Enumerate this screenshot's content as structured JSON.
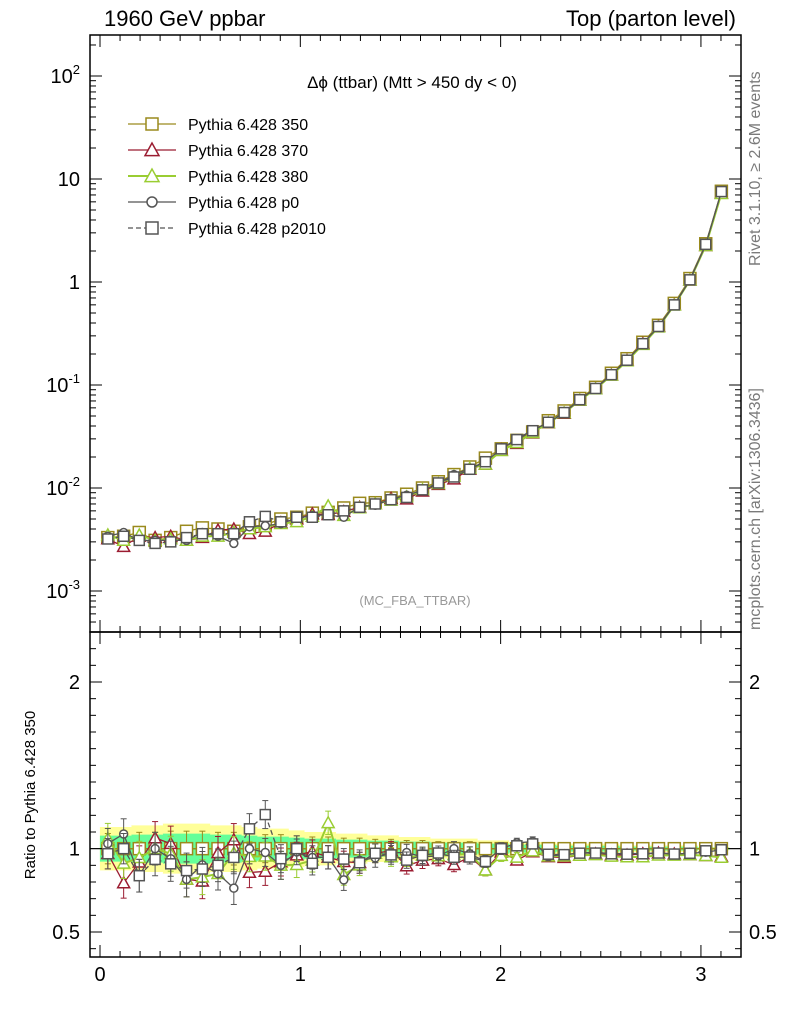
{
  "header": {
    "left": "1960 GeV ppbar",
    "right": "Top (parton level)"
  },
  "side_labels": {
    "rivet": "Rivet 3.1.10, ≥ 2.6M events",
    "mcplots": "mcplots.cern.ch [arXiv:1306.3436]"
  },
  "chart_data": {
    "type": "line",
    "title": "Δϕ (ttbar) (Mtt > 450 dy < 0)",
    "analysis_label": "(MC_FBA_TTBAR)",
    "xlabel": "",
    "ylabel": "",
    "xlim": [
      -0.05,
      3.2
    ],
    "ylim": [
      0.0004,
      250
    ],
    "yscale": "log",
    "x_ticks": [
      "0",
      "1",
      "2",
      "3"
    ],
    "y_ticks": [
      "10^-3",
      "10^-2",
      "10^-1",
      "1",
      "10",
      "10^2"
    ],
    "legend_position": "top-left",
    "x": [
      0.039,
      0.118,
      0.196,
      0.275,
      0.353,
      0.432,
      0.511,
      0.589,
      0.668,
      0.746,
      0.825,
      0.903,
      0.982,
      1.06,
      1.139,
      1.217,
      1.296,
      1.374,
      1.453,
      1.531,
      1.61,
      1.689,
      1.767,
      1.846,
      1.924,
      2.003,
      2.081,
      2.16,
      2.238,
      2.317,
      2.395,
      2.474,
      2.553,
      2.631,
      2.71,
      2.788,
      2.867,
      2.945,
      3.024,
      3.102
    ],
    "series": [
      {
        "name": "Pythia 6.428 350",
        "color": "#9a8a1d",
        "marker": "square",
        "dash": "solid",
        "values": [
          0.0033,
          0.0034,
          0.0037,
          0.0031,
          0.0033,
          0.0038,
          0.0041,
          0.004,
          0.0038,
          0.0042,
          0.0044,
          0.005,
          0.0052,
          0.0057,
          0.0058,
          0.0064,
          0.0071,
          0.0072,
          0.008,
          0.0087,
          0.01,
          0.0115,
          0.0135,
          0.016,
          0.0195,
          0.024,
          0.029,
          0.035,
          0.045,
          0.056,
          0.074,
          0.095,
          0.13,
          0.18,
          0.26,
          0.38,
          0.62,
          1.08,
          2.35,
          7.6
        ]
      },
      {
        "name": "Pythia 6.428 370",
        "color": "#9b1c31",
        "marker": "triangle",
        "dash": "solid",
        "values": [
          0.0032,
          0.0027,
          0.0034,
          0.0033,
          0.0034,
          0.0031,
          0.0033,
          0.0039,
          0.004,
          0.0036,
          0.0038,
          0.0046,
          0.005,
          0.0056,
          0.0055,
          0.0059,
          0.0065,
          0.007,
          0.0079,
          0.0078,
          0.0093,
          0.0108,
          0.0122,
          0.0152,
          0.017,
          0.0235,
          0.027,
          0.0343,
          0.0428,
          0.053,
          0.071,
          0.092,
          0.125,
          0.173,
          0.252,
          0.37,
          0.6,
          1.04,
          2.25,
          7.25
        ]
      },
      {
        "name": "Pythia 6.428 380",
        "color": "#9acd32",
        "marker": "triangle",
        "dash": "solid",
        "values": [
          0.0035,
          0.0031,
          0.0035,
          0.0031,
          0.0032,
          0.0031,
          0.0034,
          0.0034,
          0.0037,
          0.004,
          0.0042,
          0.0045,
          0.0047,
          0.0053,
          0.0067,
          0.0054,
          0.0064,
          0.007,
          0.0076,
          0.0082,
          0.0096,
          0.011,
          0.013,
          0.0155,
          0.017,
          0.023,
          0.0275,
          0.0345,
          0.043,
          0.0535,
          0.071,
          0.0915,
          0.124,
          0.171,
          0.247,
          0.365,
          0.595,
          1.04,
          2.25,
          7.2
        ]
      },
      {
        "name": "Pythia 6.428 p0",
        "color": "#555555",
        "marker": "circle",
        "dash": "solid",
        "values": [
          0.0034,
          0.0037,
          0.0031,
          0.0031,
          0.0031,
          0.0031,
          0.0037,
          0.0034,
          0.0029,
          0.0042,
          0.0043,
          0.0045,
          0.0051,
          0.0054,
          0.0055,
          0.0052,
          0.0066,
          0.0068,
          0.0078,
          0.0085,
          0.0095,
          0.011,
          0.0135,
          0.0155,
          0.018,
          0.024,
          0.03,
          0.0365,
          0.043,
          0.054,
          0.072,
          0.093,
          0.126,
          0.175,
          0.252,
          0.37,
          0.6,
          1.05,
          2.3,
          7.55
        ]
      },
      {
        "name": "Pythia 6.428 p2010",
        "color": "#555555",
        "marker": "square",
        "dash": "dashed",
        "values": [
          0.0032,
          0.0034,
          0.0031,
          0.0029,
          0.003,
          0.0033,
          0.0036,
          0.0036,
          0.0036,
          0.0047,
          0.0053,
          0.0047,
          0.0052,
          0.0052,
          0.0055,
          0.006,
          0.0065,
          0.007,
          0.0077,
          0.0081,
          0.0096,
          0.0112,
          0.0128,
          0.0152,
          0.018,
          0.024,
          0.0295,
          0.036,
          0.0435,
          0.054,
          0.072,
          0.0925,
          0.126,
          0.174,
          0.252,
          0.37,
          0.6,
          1.05,
          2.32,
          7.55
        ]
      }
    ],
    "ratio_panel": {
      "ylabel": "Ratio to Pythia 6.428 350",
      "ylim": [
        0.35,
        2.3
      ],
      "y_ticks": [
        "0.5",
        "1",
        "2"
      ],
      "reference": "Pythia 6.428 350",
      "band_relative_error": [
        0.13,
        0.13,
        0.14,
        0.14,
        0.15,
        0.15,
        0.15,
        0.14,
        0.14,
        0.13,
        0.12,
        0.12,
        0.11,
        0.1,
        0.1,
        0.09,
        0.09,
        0.08,
        0.08,
        0.07,
        0.07,
        0.06,
        0.06,
        0.06,
        0.05,
        0.05,
        0.04,
        0.04,
        0.04,
        0.03,
        0.03,
        0.03,
        0.03,
        0.02,
        0.02,
        0.02,
        0.02,
        0.02,
        0.01,
        0.01
      ]
    }
  }
}
